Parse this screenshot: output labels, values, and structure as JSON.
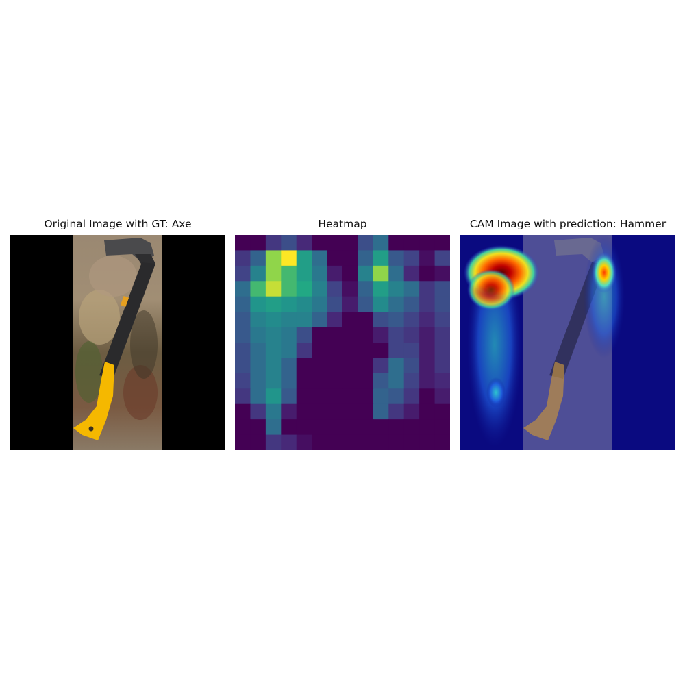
{
  "panels": [
    {
      "title": "Original Image with GT: Axe",
      "icon": "axe-photo"
    },
    {
      "title": "Heatmap",
      "icon": "heatmap-grid"
    },
    {
      "title": "CAM Image with prediction: Hammer",
      "icon": "cam-overlay"
    }
  ],
  "heatmap": {
    "colormap": "viridis",
    "rows": 14,
    "cols": 14,
    "values": [
      [
        0.0,
        0.0,
        0.2,
        0.3,
        0.15,
        0.0,
        0.0,
        0.0,
        0.3,
        0.45,
        0.0,
        0.0,
        0.0,
        0.0
      ],
      [
        0.2,
        0.4,
        0.9,
        1.0,
        0.7,
        0.45,
        0.0,
        0.0,
        0.4,
        0.7,
        0.35,
        0.25,
        0.05,
        0.25
      ],
      [
        0.25,
        0.55,
        0.9,
        0.8,
        0.7,
        0.5,
        0.1,
        0.0,
        0.55,
        0.9,
        0.45,
        0.15,
        0.0,
        0.05
      ],
      [
        0.45,
        0.8,
        0.95,
        0.8,
        0.75,
        0.55,
        0.25,
        0.05,
        0.4,
        0.7,
        0.55,
        0.45,
        0.2,
        0.3
      ],
      [
        0.4,
        0.65,
        0.7,
        0.65,
        0.6,
        0.5,
        0.3,
        0.1,
        0.35,
        0.6,
        0.45,
        0.35,
        0.2,
        0.3
      ],
      [
        0.35,
        0.55,
        0.6,
        0.55,
        0.55,
        0.4,
        0.15,
        0.0,
        0.0,
        0.3,
        0.35,
        0.25,
        0.15,
        0.25
      ],
      [
        0.35,
        0.5,
        0.55,
        0.5,
        0.3,
        0.0,
        0.0,
        0.0,
        0.0,
        0.1,
        0.25,
        0.2,
        0.1,
        0.2
      ],
      [
        0.3,
        0.45,
        0.55,
        0.5,
        0.2,
        0.0,
        0.0,
        0.0,
        0.0,
        0.0,
        0.25,
        0.25,
        0.1,
        0.2
      ],
      [
        0.3,
        0.45,
        0.55,
        0.4,
        0.0,
        0.0,
        0.0,
        0.0,
        0.0,
        0.2,
        0.45,
        0.3,
        0.1,
        0.2
      ],
      [
        0.25,
        0.45,
        0.55,
        0.4,
        0.0,
        0.0,
        0.0,
        0.0,
        0.0,
        0.35,
        0.45,
        0.25,
        0.1,
        0.15
      ],
      [
        0.2,
        0.45,
        0.65,
        0.35,
        0.0,
        0.0,
        0.0,
        0.0,
        0.0,
        0.4,
        0.35,
        0.2,
        0.0,
        0.1
      ],
      [
        0.0,
        0.2,
        0.5,
        0.1,
        0.0,
        0.0,
        0.0,
        0.0,
        0.0,
        0.4,
        0.2,
        0.1,
        0.0,
        0.0
      ],
      [
        0.0,
        0.0,
        0.45,
        0.0,
        0.0,
        0.0,
        0.0,
        0.0,
        0.0,
        0.0,
        0.0,
        0.0,
        0.0,
        0.0
      ],
      [
        0.0,
        0.0,
        0.2,
        0.15,
        0.05,
        0.0,
        0.0,
        0.0,
        0.0,
        0.0,
        0.0,
        0.0,
        0.0,
        0.0
      ]
    ]
  }
}
